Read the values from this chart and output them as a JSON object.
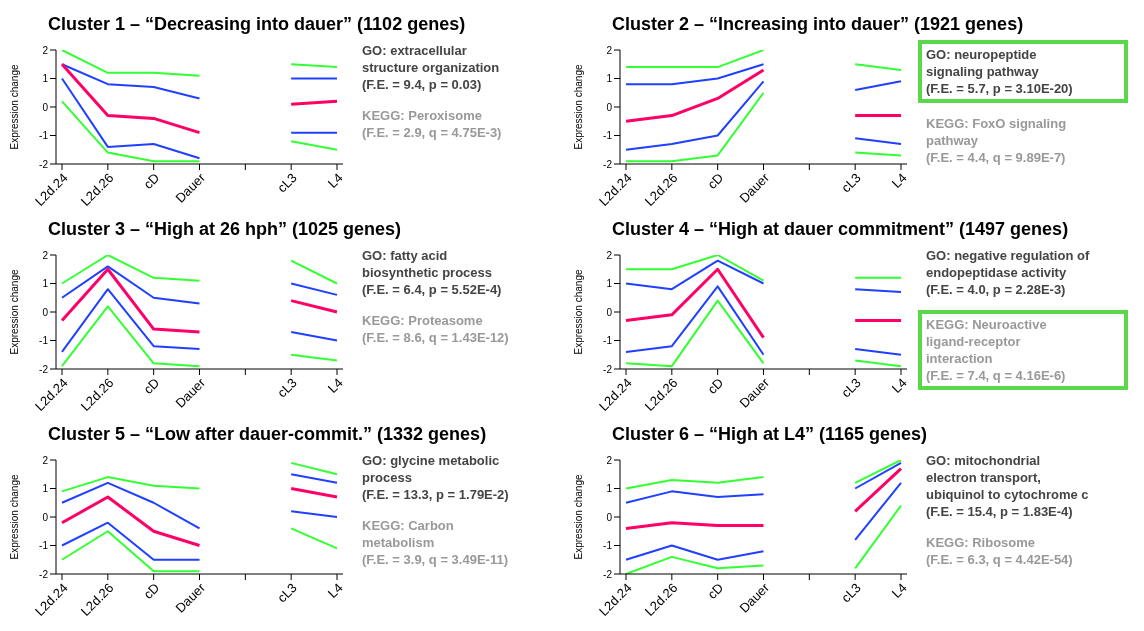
{
  "chart_data": [
    {
      "type": "line",
      "title": "Cluster 1 – “Decreasing into dauer” (1102 genes)",
      "ylabel": "Expression change",
      "categories": [
        "L2d.24",
        "L2d.26",
        "cD",
        "Dauer",
        null,
        "cL3",
        "L4"
      ],
      "ylim": [
        -2,
        2
      ],
      "yticks": [
        -2,
        -1,
        0,
        1,
        2
      ],
      "grid": false,
      "legend": false,
      "series": [
        {
          "color": "#33ff33",
          "values": [
            2.0,
            1.2,
            1.2,
            1.1,
            null,
            1.5,
            1.4
          ]
        },
        {
          "color": "#2040ff",
          "values": [
            1.5,
            0.8,
            0.7,
            0.3,
            null,
            1.0,
            1.0
          ]
        },
        {
          "color": "#ff0066",
          "values": [
            1.5,
            -0.3,
            -0.4,
            -0.9,
            null,
            0.1,
            0.2
          ]
        },
        {
          "color": "#2040ff",
          "values": [
            1.0,
            -1.4,
            -1.3,
            -1.8,
            null,
            -0.9,
            -0.9
          ]
        },
        {
          "color": "#33ff33",
          "values": [
            0.2,
            -1.6,
            -1.9,
            -1.9,
            null,
            -1.2,
            -1.5
          ]
        }
      ],
      "annotations": [
        "GO: extracellular\nstructure organization\n(F.E. = 9.4, p = 0.03)",
        "KEGG: Peroxisome\n(F.E. = 2.9, q = 4.75E-3)"
      ]
    },
    {
      "type": "line",
      "title": "Cluster 2 – “Increasing into dauer” (1921 genes)",
      "ylabel": "Expression change",
      "categories": [
        "L2d.24",
        "L2d.26",
        "cD",
        "Dauer",
        null,
        "cL3",
        "L4"
      ],
      "ylim": [
        -2,
        2
      ],
      "yticks": [
        -2,
        -1,
        0,
        1,
        2
      ],
      "grid": false,
      "legend": false,
      "series": [
        {
          "color": "#33ff33",
          "values": [
            1.4,
            1.4,
            1.4,
            2.0,
            null,
            1.5,
            1.3
          ]
        },
        {
          "color": "#2040ff",
          "values": [
            0.8,
            0.8,
            1.0,
            1.5,
            null,
            0.6,
            0.9
          ]
        },
        {
          "color": "#ff0066",
          "values": [
            -0.5,
            -0.3,
            0.3,
            1.3,
            null,
            -0.3,
            -0.3
          ]
        },
        {
          "color": "#2040ff",
          "values": [
            -1.5,
            -1.3,
            -1.0,
            0.9,
            null,
            -1.1,
            -1.3
          ]
        },
        {
          "color": "#33ff33",
          "values": [
            -1.9,
            -1.9,
            -1.7,
            0.5,
            null,
            -1.6,
            -1.7
          ]
        }
      ],
      "annotations": [
        "GO: neuropeptide\nsignaling pathway\n(F.E. = 5.7, p = 3.10E-20)",
        "KEGG: FoxO signaling\npathway\n(F.E. = 4.4, q = 9.89E-7)"
      ]
    },
    {
      "type": "line",
      "title": "Cluster 3 – “High at 26 hph” (1025 genes)",
      "ylabel": "Expression change",
      "categories": [
        "L2d.24",
        "L2d.26",
        "cD",
        "Dauer",
        null,
        "cL3",
        "L4"
      ],
      "ylim": [
        -2,
        2
      ],
      "yticks": [
        -2,
        -1,
        0,
        1,
        2
      ],
      "grid": false,
      "legend": false,
      "series": [
        {
          "color": "#33ff33",
          "values": [
            1.0,
            2.0,
            1.2,
            1.1,
            null,
            1.8,
            1.0
          ]
        },
        {
          "color": "#2040ff",
          "values": [
            0.5,
            1.6,
            0.5,
            0.3,
            null,
            1.0,
            0.6
          ]
        },
        {
          "color": "#ff0066",
          "values": [
            -0.3,
            1.5,
            -0.6,
            -0.7,
            null,
            0.4,
            0.0
          ]
        },
        {
          "color": "#2040ff",
          "values": [
            -1.4,
            0.8,
            -1.2,
            -1.3,
            null,
            -0.7,
            -1.0
          ]
        },
        {
          "color": "#33ff33",
          "values": [
            -1.9,
            0.2,
            -1.8,
            -1.9,
            null,
            -1.5,
            -1.7
          ]
        }
      ],
      "annotations": [
        "GO: fatty acid\nbiosynthetic process\n(F.E. = 6.4, p = 5.52E-4)",
        "KEGG: Proteasome\n(F.E. = 8.6, q = 1.43E-12)"
      ]
    },
    {
      "type": "line",
      "title": "Cluster 4 – “High at dauer commitment” (1497 genes)",
      "ylabel": "Expression change",
      "categories": [
        "L2d.24",
        "L2d.26",
        "cD",
        "Dauer",
        null,
        "cL3",
        "L4"
      ],
      "ylim": [
        -2,
        2
      ],
      "yticks": [
        -2,
        -1,
        0,
        1,
        2
      ],
      "grid": false,
      "legend": false,
      "series": [
        {
          "color": "#33ff33",
          "values": [
            1.5,
            1.5,
            2.0,
            1.1,
            null,
            1.2,
            1.2
          ]
        },
        {
          "color": "#2040ff",
          "values": [
            1.0,
            0.8,
            1.8,
            1.0,
            null,
            0.8,
            0.7
          ]
        },
        {
          "color": "#ff0066",
          "values": [
            -0.3,
            -0.1,
            1.5,
            -0.9,
            null,
            -0.3,
            -0.3
          ]
        },
        {
          "color": "#2040ff",
          "values": [
            -1.4,
            -1.2,
            0.9,
            -1.5,
            null,
            -1.3,
            -1.5
          ]
        },
        {
          "color": "#33ff33",
          "values": [
            -1.8,
            -1.9,
            0.4,
            -1.8,
            null,
            -1.7,
            -1.9
          ]
        }
      ],
      "annotations": [
        "GO: negative regulation of\nendopeptidase activity\n(F.E. = 4.0, p = 2.28E-3)",
        "KEGG: Neuroactive\nligand-receptor\ninteraction\n(F.E. = 7.4, q = 4.16E-6)"
      ]
    },
    {
      "type": "line",
      "title": "Cluster 5 – “Low after dauer-commit.” (1332 genes)",
      "ylabel": "Expression change",
      "categories": [
        "L2d.24",
        "L2d.26",
        "cD",
        "Dauer",
        null,
        "cL3",
        "L4"
      ],
      "ylim": [
        -2,
        2
      ],
      "yticks": [
        -2,
        -1,
        0,
        1,
        2
      ],
      "grid": false,
      "legend": false,
      "series": [
        {
          "color": "#33ff33",
          "values": [
            0.9,
            1.4,
            1.1,
            1.0,
            null,
            1.9,
            1.5
          ]
        },
        {
          "color": "#2040ff",
          "values": [
            0.5,
            1.2,
            0.5,
            -0.4,
            null,
            1.5,
            1.2
          ]
        },
        {
          "color": "#ff0066",
          "values": [
            -0.2,
            0.7,
            -0.5,
            -1.0,
            null,
            1.0,
            0.7
          ]
        },
        {
          "color": "#2040ff",
          "values": [
            -1.0,
            -0.2,
            -1.5,
            -1.5,
            null,
            0.2,
            0.0
          ]
        },
        {
          "color": "#33ff33",
          "values": [
            -1.5,
            -0.5,
            -1.9,
            -1.9,
            null,
            -0.4,
            -1.1
          ]
        }
      ],
      "annotations": [
        "GO: glycine metabolic\nprocess\n(F.E. = 13.3, p = 1.79E-2)",
        "KEGG: Carbon\nmetabolism\n(F.E. = 3.9, q = 3.49E-11)"
      ]
    },
    {
      "type": "line",
      "title": "Cluster 6 – “High at L4” (1165 genes)",
      "ylabel": "Expression change",
      "categories": [
        "L2d.24",
        "L2d.26",
        "cD",
        "Dauer",
        null,
        "cL3",
        "L4"
      ],
      "ylim": [
        -2,
        2
      ],
      "yticks": [
        -2,
        -1,
        0,
        1,
        2
      ],
      "grid": false,
      "legend": false,
      "series": [
        {
          "color": "#33ff33",
          "values": [
            1.0,
            1.3,
            1.2,
            1.4,
            null,
            1.2,
            2.0
          ]
        },
        {
          "color": "#2040ff",
          "values": [
            0.5,
            0.9,
            0.7,
            0.8,
            null,
            1.0,
            1.9
          ]
        },
        {
          "color": "#ff0066",
          "values": [
            -0.4,
            -0.2,
            -0.3,
            -0.3,
            null,
            0.2,
            1.7
          ]
        },
        {
          "color": "#2040ff",
          "values": [
            -1.5,
            -1.0,
            -1.5,
            -1.2,
            null,
            -0.8,
            1.2
          ]
        },
        {
          "color": "#33ff33",
          "values": [
            -2.0,
            -1.4,
            -1.8,
            -1.7,
            null,
            -1.8,
            0.4
          ]
        }
      ],
      "annotations": [
        "GO: mitochondrial\nelectron transport,\nubiquinol to cytochrome c\n(F.E. = 15.4, p = 1.83E-4)",
        "KEGG: Ribosome\n(F.E. = 6.3, q = 4.42E-54)"
      ]
    }
  ]
}
